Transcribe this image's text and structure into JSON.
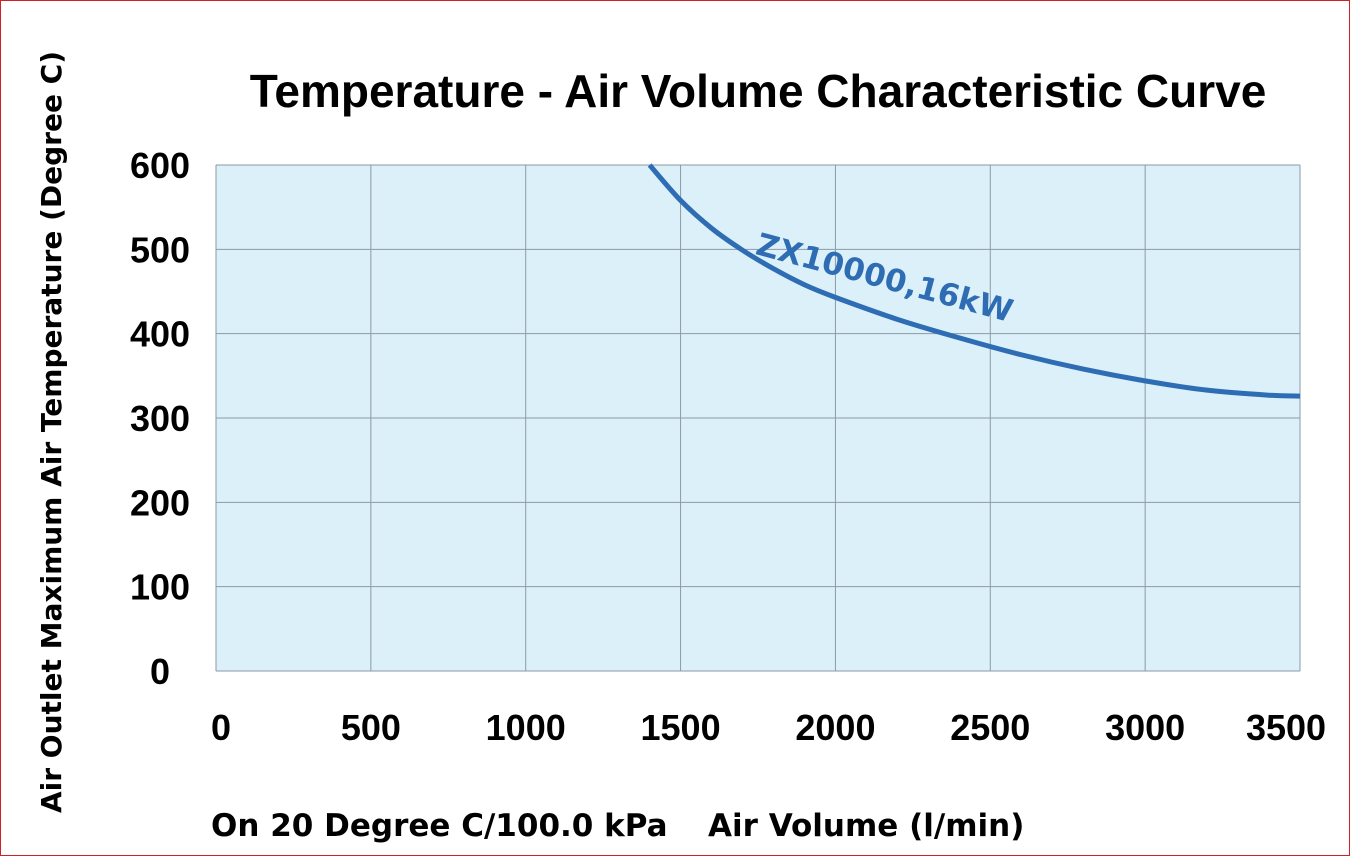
{
  "chart_data": {
    "type": "line",
    "title": "Temperature - Air Volume Characteristic Curve",
    "xlabel": "Air Volume (l/min)",
    "ylabel": "Air Outlet Maximum Air Temperature (Degree C)",
    "condition_note": "On 20 Degree C/100.0 kPa",
    "xlim": [
      0,
      3500
    ],
    "ylim": [
      0,
      600
    ],
    "x_ticks": [
      "0",
      "500",
      "1000",
      "1500",
      "2000",
      "2500",
      "3000",
      "3500"
    ],
    "y_ticks": [
      "0",
      "100",
      "200",
      "300",
      "400",
      "500",
      "600"
    ],
    "grid": true,
    "series": [
      {
        "name": "ZX10000,16kW",
        "color": "#2e6db4",
        "x": [
          1400,
          1500,
          1600,
          1700,
          1800,
          1900,
          2000,
          2200,
          2400,
          2600,
          2800,
          3000,
          3200,
          3400,
          3500
        ],
        "y": [
          600,
          558,
          525,
          499,
          477,
          458,
          443,
          417,
          395,
          375,
          358,
          344,
          333,
          327,
          326
        ]
      }
    ]
  },
  "colors": {
    "plot_background": "#dcf0fa",
    "gridline": "#8a9aa6",
    "frame_border": "#d0202a"
  }
}
